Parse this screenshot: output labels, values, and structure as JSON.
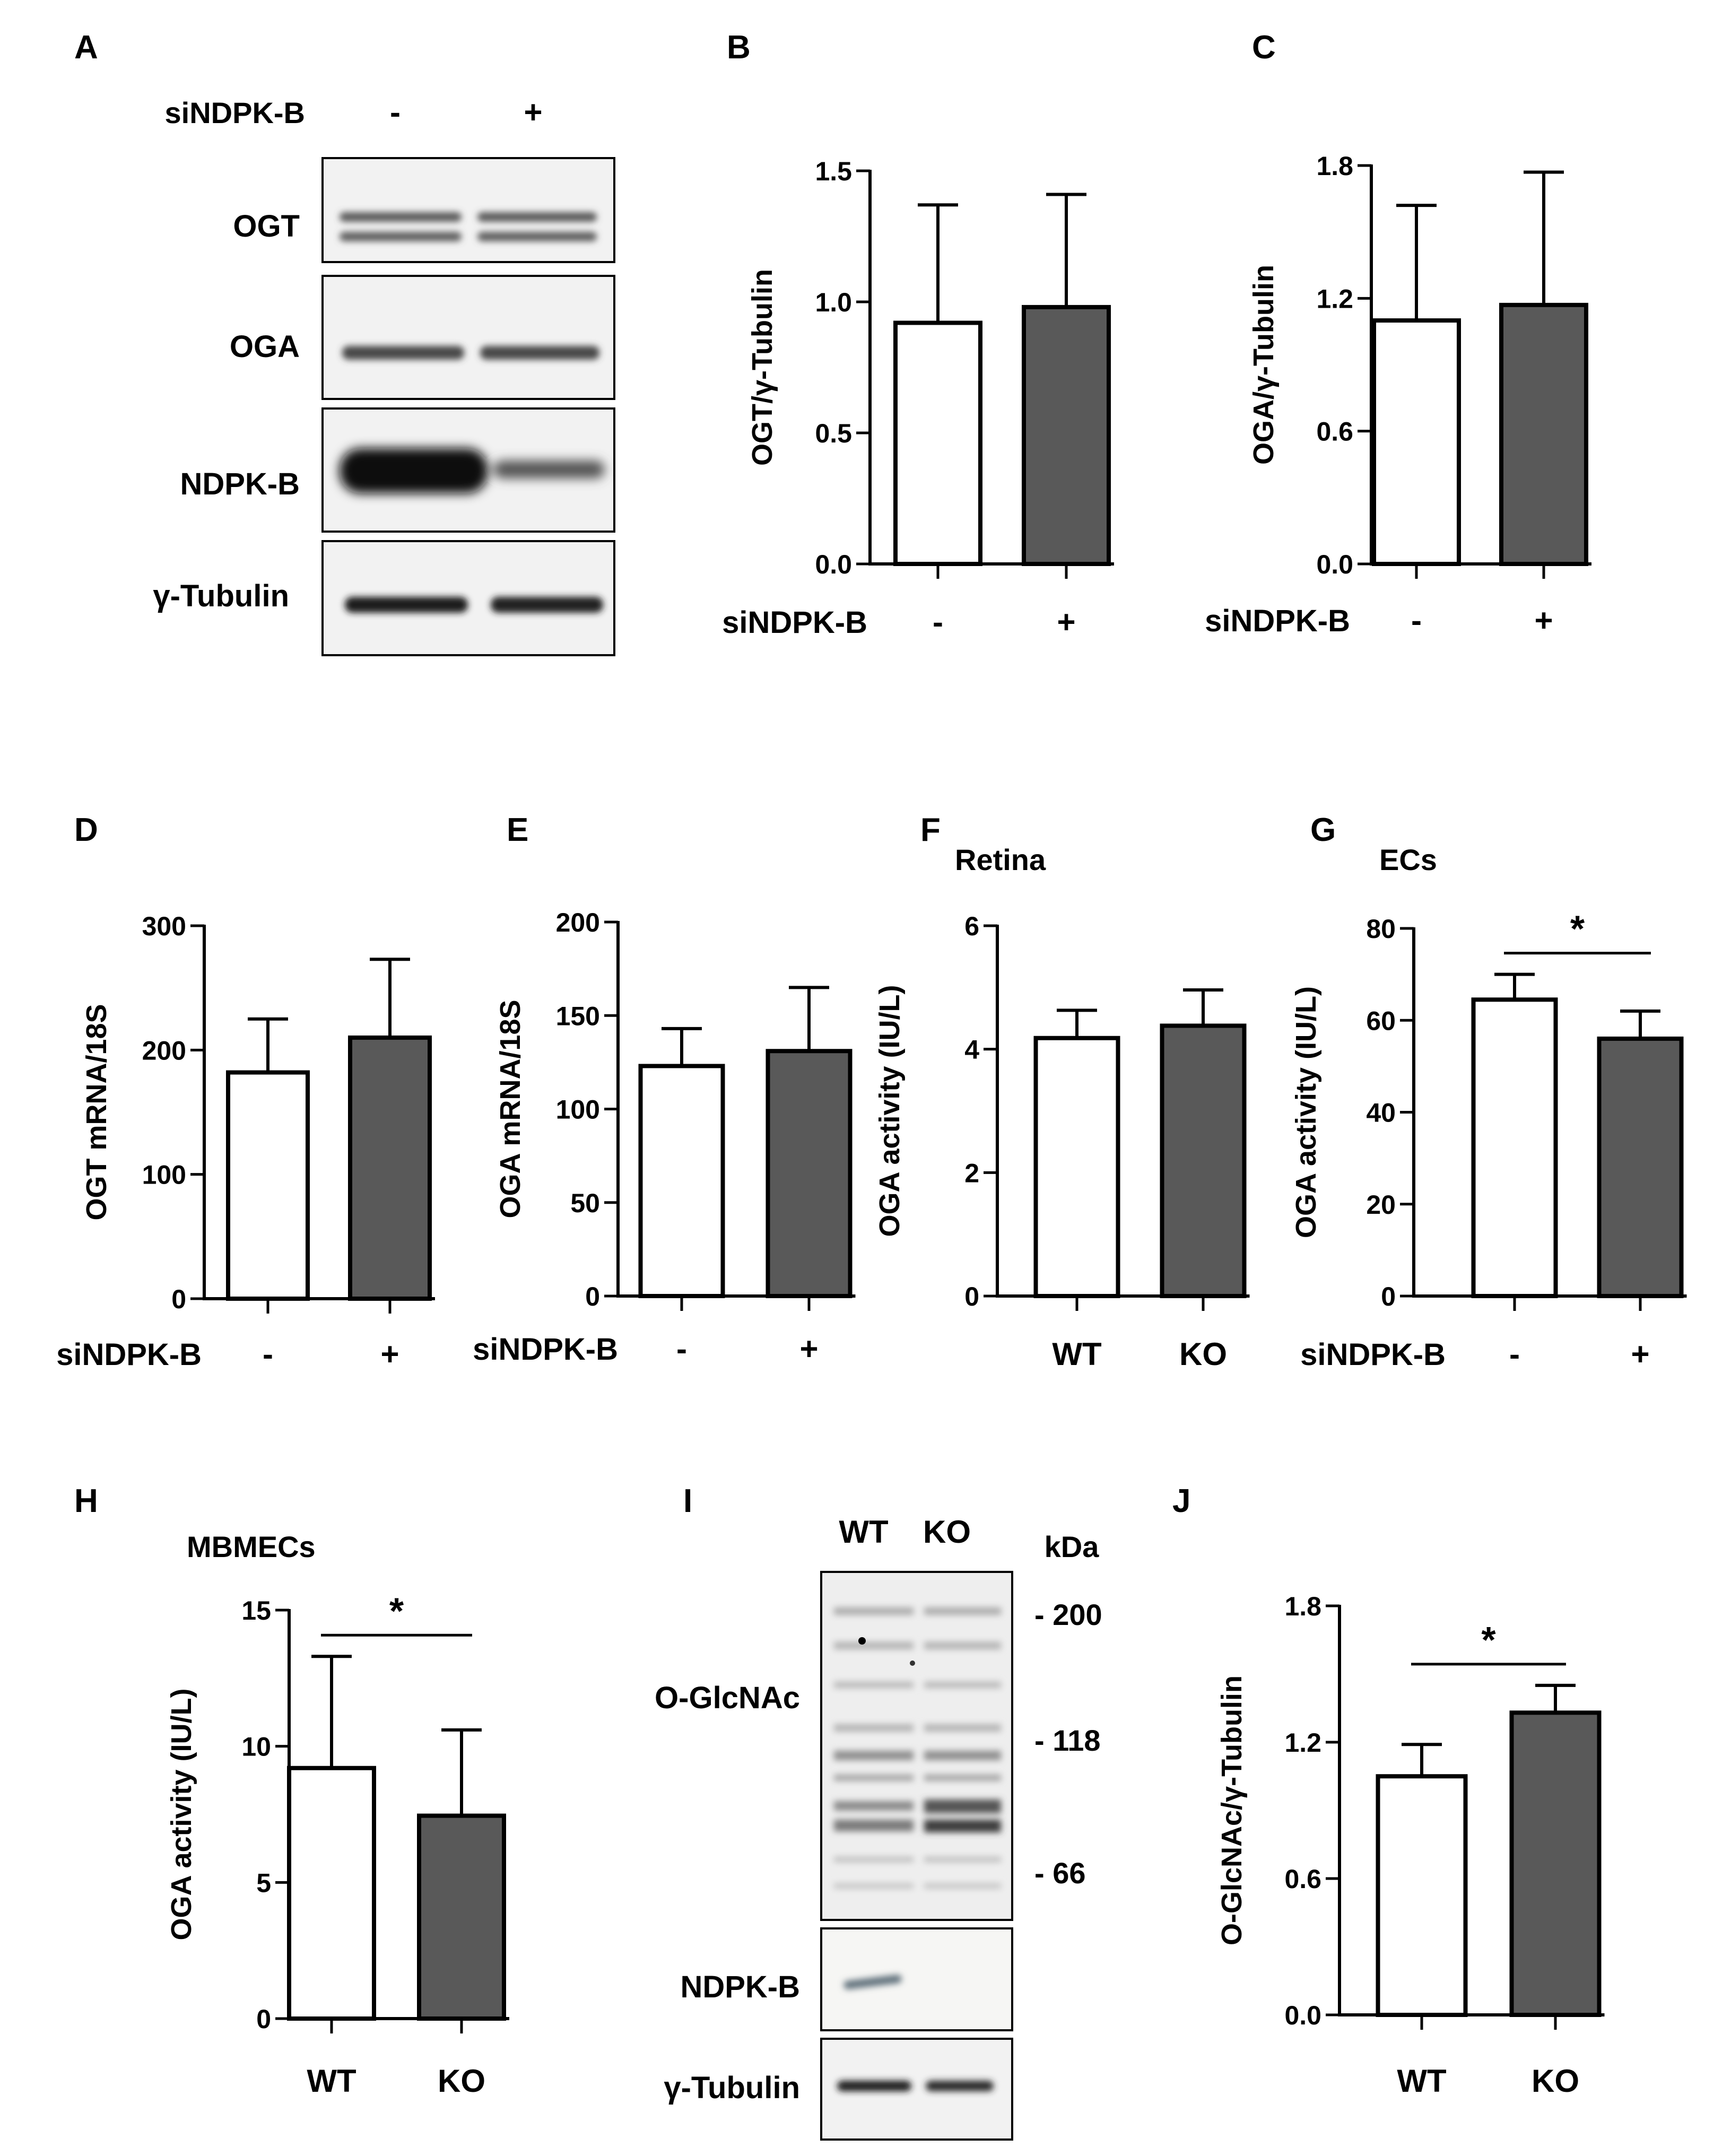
{
  "panel_letters": [
    "A",
    "B",
    "C",
    "D",
    "E",
    "F",
    "G",
    "H",
    "I",
    "J"
  ],
  "blot_A": {
    "header_label": "siNDPK-B",
    "lanes": [
      "-",
      "+"
    ],
    "rows": [
      "OGT",
      "OGA",
      "NDPK-B",
      "γ-Tubulin"
    ]
  },
  "blot_I": {
    "lanes": [
      "WT",
      "KO"
    ],
    "unit": "kDa",
    "markers": [
      "- 200",
      "- 118",
      "- 66"
    ],
    "rows": [
      "O-GlcNAc",
      "NDPK-B",
      "γ-Tubulin"
    ]
  },
  "colors": {
    "control": "#ffffff",
    "treated": "#595959",
    "line": "#000000"
  },
  "chart_data": [
    {
      "panel": "B",
      "type": "bar",
      "title": "",
      "ylabel": "OGT/γ-Tubulin",
      "ylim": [
        0,
        1.5
      ],
      "yticks": [
        "0.0",
        "0.5",
        "1.0",
        "1.5"
      ],
      "xlabel": "siNDPK-B",
      "categories": [
        "-",
        "+"
      ],
      "values": [
        0.92,
        0.98
      ],
      "errors": [
        0.45,
        0.43
      ],
      "significance": ""
    },
    {
      "panel": "C",
      "type": "bar",
      "title": "",
      "ylabel": "OGA/γ-Tubulin",
      "ylim": [
        0,
        1.8
      ],
      "yticks": [
        "0.0",
        "0.6",
        "1.2",
        "1.8"
      ],
      "xlabel": "siNDPK-B",
      "categories": [
        "-",
        "+"
      ],
      "values": [
        1.1,
        1.17
      ],
      "errors": [
        0.52,
        0.6
      ],
      "significance": ""
    },
    {
      "panel": "D",
      "type": "bar",
      "title": "",
      "ylabel": "OGT mRNA/18S",
      "ylim": [
        0,
        300
      ],
      "yticks": [
        "0",
        "100",
        "200",
        "300"
      ],
      "xlabel": "siNDPK-B",
      "categories": [
        "-",
        "+"
      ],
      "values": [
        182,
        210
      ],
      "errors": [
        43,
        63
      ],
      "significance": ""
    },
    {
      "panel": "E",
      "type": "bar",
      "title": "",
      "ylabel": "OGA mRNA/18S",
      "ylim": [
        0,
        200
      ],
      "yticks": [
        "0",
        "50",
        "100",
        "150",
        "200"
      ],
      "xlabel": "siNDPK-B",
      "categories": [
        "-",
        "+"
      ],
      "values": [
        123,
        131
      ],
      "errors": [
        20,
        34
      ],
      "significance": ""
    },
    {
      "panel": "F",
      "type": "bar",
      "title": "Retina",
      "ylabel": "OGA activity (IU/L)",
      "ylim": [
        0,
        6
      ],
      "yticks": [
        "0",
        "2",
        "4",
        "6"
      ],
      "xlabel": "",
      "categories": [
        "WT",
        "KO"
      ],
      "values": [
        4.18,
        4.38
      ],
      "errors": [
        0.45,
        0.58
      ],
      "significance": ""
    },
    {
      "panel": "G",
      "type": "bar",
      "title": "ECs",
      "ylabel": "OGA activity (IU/L)",
      "ylim": [
        0,
        80
      ],
      "yticks": [
        "0",
        "20",
        "40",
        "60",
        "80"
      ],
      "xlabel": "siNDPK-B",
      "categories": [
        "-",
        "+"
      ],
      "values": [
        64.5,
        56
      ],
      "errors": [
        5.5,
        6
      ],
      "significance": "*"
    },
    {
      "panel": "H",
      "type": "bar",
      "title": "MBMECs",
      "ylabel": "OGA activity (IU/L)",
      "ylim": [
        0,
        15
      ],
      "yticks": [
        "0",
        "5",
        "10",
        "15"
      ],
      "xlabel": "",
      "categories": [
        "WT",
        "KO"
      ],
      "values": [
        9.2,
        7.45
      ],
      "errors": [
        4.1,
        3.15
      ],
      "significance": "*"
    },
    {
      "panel": "J",
      "type": "bar",
      "title": "",
      "ylabel": "O-GlcNAc/γ-Tubulin",
      "ylim": [
        0,
        1.8
      ],
      "yticks": [
        "0.0",
        "0.6",
        "1.2",
        "1.8"
      ],
      "xlabel": "",
      "categories": [
        "WT",
        "KO"
      ],
      "values": [
        1.05,
        1.33
      ],
      "errors": [
        0.14,
        0.12
      ],
      "significance": "*"
    }
  ]
}
